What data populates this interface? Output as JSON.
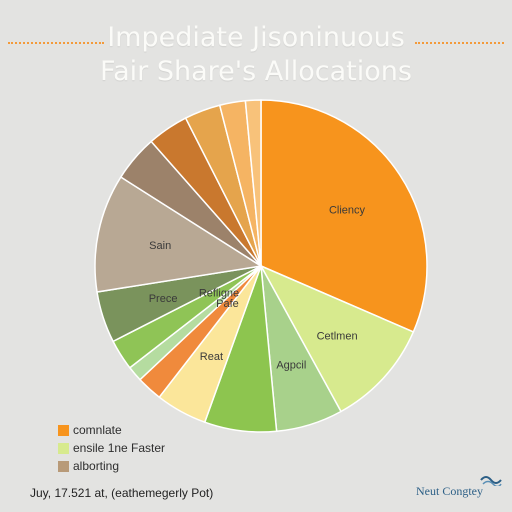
{
  "header": {
    "title_line1": "Impediate Jisoninuous",
    "title_line2": "Fair Share's Allocations"
  },
  "chart_data": {
    "type": "pie",
    "title": "Impediate Jisoninuous Fair Share's Allocations",
    "slices": [
      {
        "label": "Cliency",
        "value": 31.5,
        "color": "#f7941d"
      },
      {
        "label": "Cetlmen",
        "value": 10.5,
        "color": "#d7ea8e"
      },
      {
        "label": "Agpcil",
        "value": 6.5,
        "color": "#a8d18b"
      },
      {
        "label": "",
        "value": 7.0,
        "color": "#8dc54f"
      },
      {
        "label": "Reat",
        "value": 5.0,
        "color": "#fbe69a"
      },
      {
        "label": "Pafe",
        "value": 2.5,
        "color": "#f08a3c"
      },
      {
        "label": "",
        "value": 1.5,
        "color": "#b5dca0"
      },
      {
        "label": "Refligne",
        "value": 3.0,
        "color": "#8fc456"
      },
      {
        "label": "Prece",
        "value": 5.0,
        "color": "#7a935c"
      },
      {
        "label": "Sain",
        "value": 11.5,
        "color": "#b8a894"
      },
      {
        "label": "",
        "value": 4.5,
        "color": "#9c826a"
      },
      {
        "label": "",
        "value": 4.0,
        "color": "#c9782e"
      },
      {
        "label": "",
        "value": 3.5,
        "color": "#e5a44c"
      },
      {
        "label": "",
        "value": 2.5,
        "color": "#f5b463"
      },
      {
        "label": "",
        "value": 1.5,
        "color": "#f8c27a"
      }
    ],
    "legend_position": "bottom-left",
    "legend": [
      {
        "label": "comnlate",
        "color": "#f7941d"
      },
      {
        "label": "ensile 1ne Faster",
        "color": "#d7ea8e"
      },
      {
        "label": "alborting",
        "color": "#b89a78"
      }
    ]
  },
  "footer": {
    "left_text": "Juy, 17.521 at, (eathemegerly Pot)",
    "brand": "Neut Congtey"
  }
}
